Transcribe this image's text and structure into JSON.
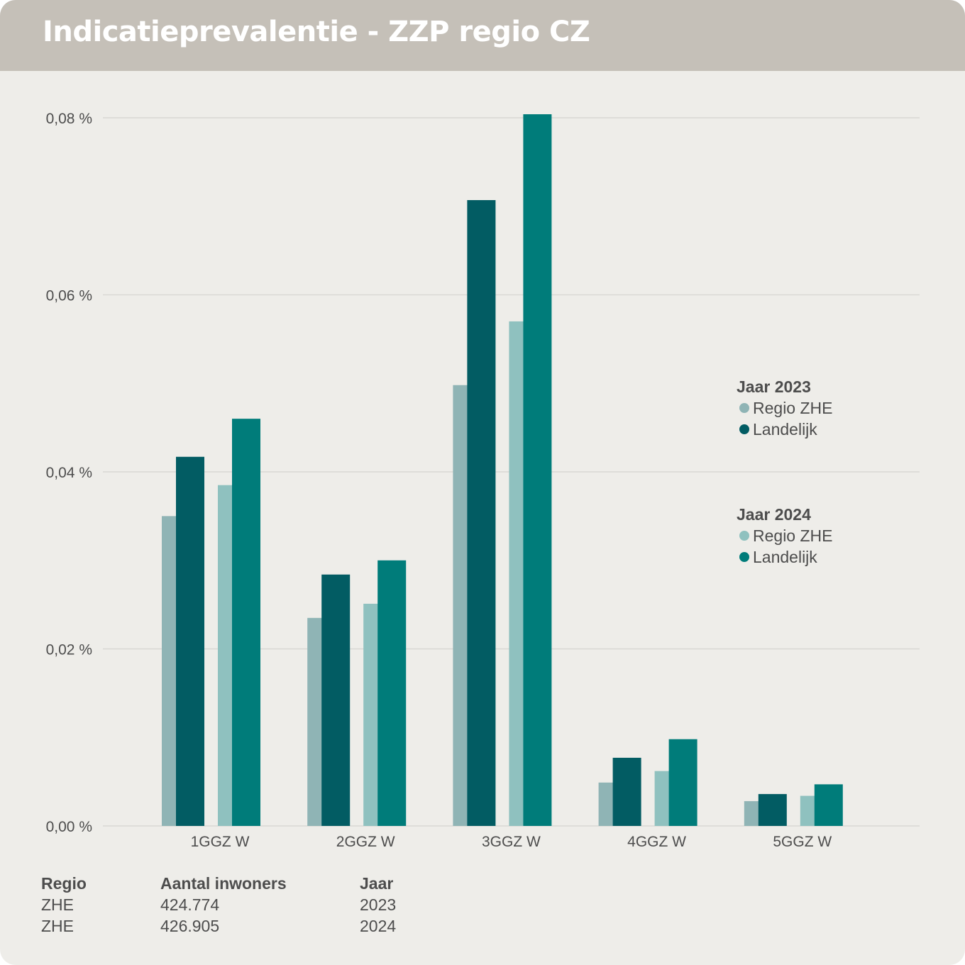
{
  "header": {
    "title": "Indicatieprevalentie - ZZP regio CZ"
  },
  "colors": {
    "regio_2023": "#8fb4b5",
    "landelijk_2023": "#025c63",
    "regio_2024": "#8fc1bf",
    "landelijk_2024": "#007c7a",
    "grid": "#d9d8d4",
    "text": "#4d4d4d"
  },
  "chart_data": {
    "type": "bar",
    "categories": [
      "1GGZ W",
      "2GGZ W",
      "3GGZ W",
      "4GGZ W",
      "5GGZ W"
    ],
    "yticks": [
      "0,00 %",
      "0,02 %",
      "0,04 %",
      "0,06 %",
      "0,08 %"
    ],
    "ylim": [
      0,
      0.08
    ],
    "grid": true,
    "legend_position": "right",
    "series": [
      {
        "name": "Regio ZHE",
        "group": "Jaar 2023",
        "values": [
          0.035,
          0.0235,
          0.0498,
          0.0049,
          0.0028
        ]
      },
      {
        "name": "Landelijk",
        "group": "Jaar 2023",
        "values": [
          0.0417,
          0.0284,
          0.0707,
          0.0077,
          0.0036
        ]
      },
      {
        "name": "Regio ZHE",
        "group": "Jaar 2024",
        "values": [
          0.0385,
          0.0251,
          0.057,
          0.0062,
          0.0034
        ]
      },
      {
        "name": "Landelijk",
        "group": "Jaar 2024",
        "values": [
          0.046,
          0.03,
          0.0804,
          0.0098,
          0.0047
        ]
      }
    ]
  },
  "legend": {
    "group_2023": {
      "title": "Jaar 2023",
      "regio": "Regio ZHE",
      "landelijk": "Landelijk"
    },
    "group_2024": {
      "title": "Jaar 2024",
      "regio": "Regio ZHE",
      "landelijk": "Landelijk"
    }
  },
  "info_table": {
    "headers": {
      "regio": "Regio",
      "inwoners": "Aantal inwoners",
      "jaar": "Jaar"
    },
    "rows": [
      {
        "regio": "ZHE",
        "inwoners": "424.774",
        "jaar": "2023"
      },
      {
        "regio": "ZHE",
        "inwoners": "426.905",
        "jaar": "2024"
      }
    ]
  }
}
